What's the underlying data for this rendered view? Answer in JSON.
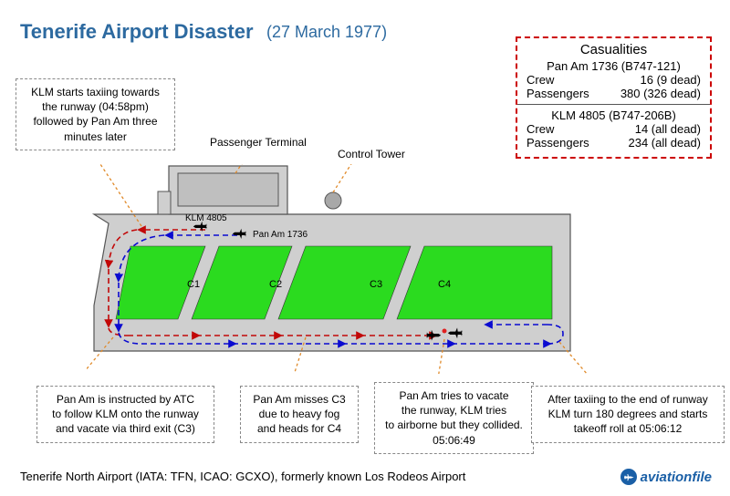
{
  "title_main": "Tenerife Airport Disaster",
  "title_date": "(27 March 1977)",
  "title_color": "#2d6aa0",
  "colors": {
    "apron": "#cfcfcf",
    "grass": "#2bdb1f",
    "klm_path": "#c20808",
    "panam_path": "#0a0ad0",
    "box_border": "#9a9a9a",
    "casualties_border": "#c00000",
    "label_line": "#555555"
  },
  "casualties": {
    "heading": "Casualities",
    "panam_title": "Pan Am 1736  (B747-121)",
    "panam_crew_label": "Crew",
    "panam_crew_val": "16 (9 dead)",
    "panam_pax_label": "Passengers",
    "panam_pax_val": "380 (326 dead)",
    "klm_title": "KLM 4805 (B747-206B)",
    "klm_crew_label": "Crew",
    "klm_crew_val": "14 (all dead)",
    "klm_pax_label": "Passengers",
    "klm_pax_val": "234 (all dead)"
  },
  "boxes": {
    "b1": "KLM starts taxiing towards\nthe runway  (04:58pm)\nfollowed by Pan Am three\nminutes later",
    "b2": "Pan Am is instructed by ATC\nto follow KLM onto the runway\nand vacate via third exit (C3)",
    "b3": "Pan Am misses C3\ndue to heavy fog\nand heads for C4",
    "b4": "Pan Am tries to vacate\nthe runway, KLM tries\nto airborne but they collided.\n05:06:49",
    "b5": "After taxiing to the end of runway\nKLM turn 180 degrees and starts\ntakeoff roll at 05:06:12"
  },
  "labels": {
    "terminal": "Passenger Terminal",
    "tower": "Control Tower",
    "klm": "KLM 4805",
    "panam": "Pan Am 1736",
    "c1": "C1",
    "c2": "C2",
    "c3": "C3",
    "c4": "C4"
  },
  "footer": "Tenerife North Airport (IATA: TFN, ICAO: GCXO), formerly known Los Rodeos Airport",
  "brand": "aviationfile"
}
